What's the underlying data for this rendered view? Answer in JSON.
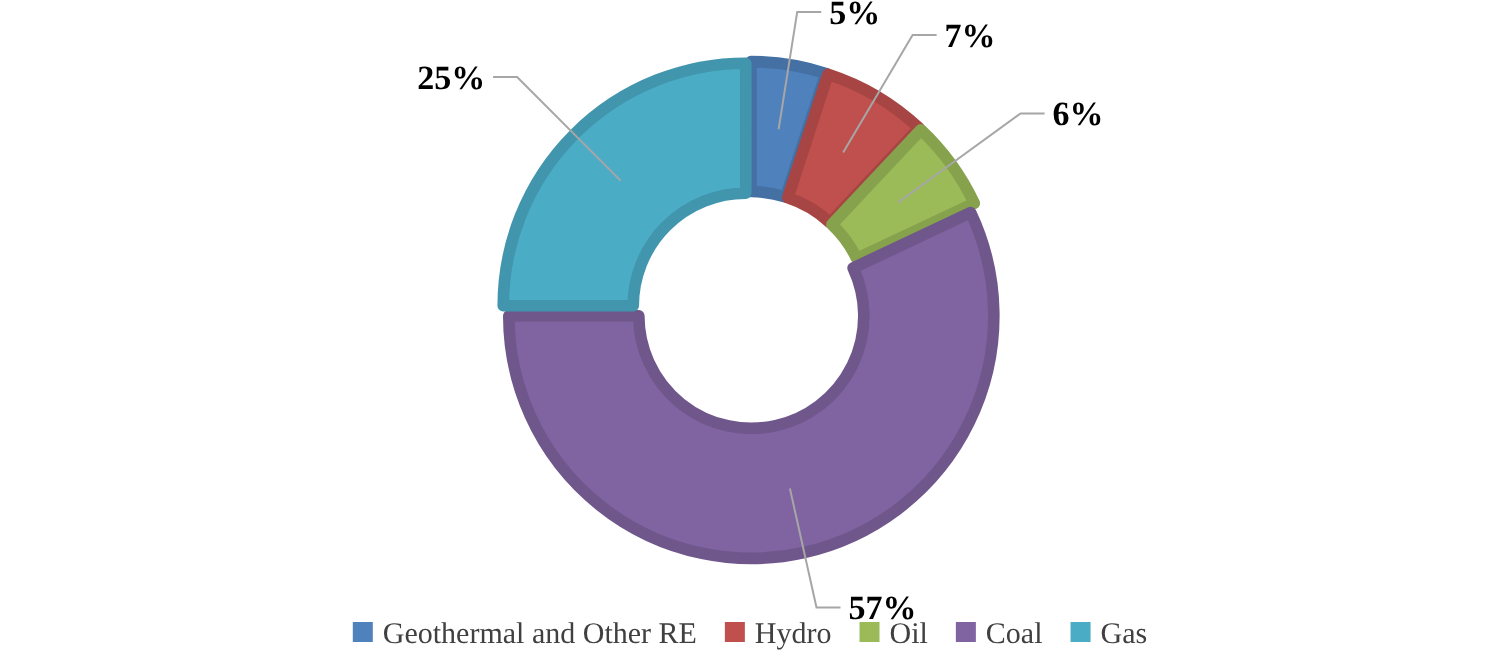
{
  "chart_data": {
    "type": "donut",
    "categories": [
      "Geothermal and Other RE",
      "Hydro",
      "Oil",
      "Coal",
      "Gas"
    ],
    "values": [
      5,
      7,
      6,
      57,
      25
    ],
    "colors": [
      "#4f81bd",
      "#c0504d",
      "#9bbb59",
      "#8064a2",
      "#4bacc6"
    ],
    "value_labels": [
      "5%",
      "7%",
      "6%",
      "57%",
      "25%"
    ],
    "legend": "bottom"
  }
}
